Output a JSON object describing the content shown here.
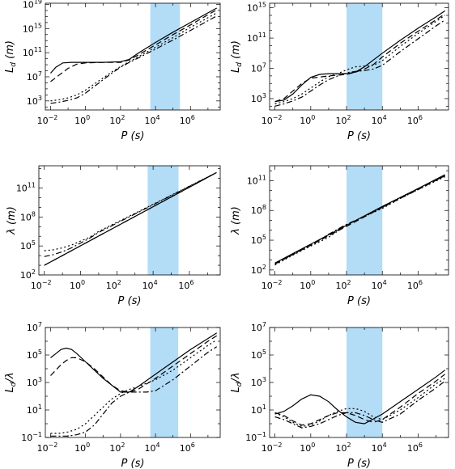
{
  "chart_data": [
    {
      "type": "line",
      "panel": "top-left",
      "xlabel": {
        "base": "P",
        "unit": "s"
      },
      "ylabel": {
        "base": "L",
        "sub": "d",
        "unit": "m"
      },
      "xlog": true,
      "ylog": true,
      "xlim": [
        -2.3,
        7.7
      ],
      "ylim": [
        1.5,
        19.2
      ],
      "xticks": [
        -2,
        0,
        2,
        4,
        6
      ],
      "yticks": [
        3,
        7,
        11,
        15,
        19
      ],
      "band": [
        3.7,
        5.4
      ],
      "band_color": "#b3dcf7",
      "series": [
        {
          "style": "solid",
          "x": [
            -2.0,
            -1.7,
            -1.3,
            -0.8,
            0,
            1,
            2,
            2.5,
            3,
            4,
            5,
            6,
            7,
            7.5
          ],
          "y": [
            7.6,
            8.6,
            9.3,
            9.4,
            9.4,
            9.4,
            9.5,
            9.9,
            10.9,
            12.7,
            14.4,
            16.0,
            17.6,
            18.4
          ]
        },
        {
          "style": "dashed",
          "x": [
            -2.0,
            -1.5,
            -1,
            -0.5,
            0,
            1,
            2,
            2.5,
            3,
            4,
            5,
            6,
            7,
            7.5
          ],
          "y": [
            6.2,
            7.3,
            8.4,
            9.1,
            9.3,
            9.4,
            9.4,
            9.8,
            10.6,
            12.3,
            14.0,
            15.6,
            17.3,
            18.1
          ]
        },
        {
          "style": "dotted",
          "x": [
            -2.0,
            -1.5,
            -1,
            -0.5,
            0,
            0.5,
            1,
            1.5,
            2,
            2.5,
            3,
            4,
            5,
            6,
            7,
            7.5
          ],
          "y": [
            3.0,
            3.2,
            3.5,
            4.0,
            4.8,
            5.8,
            6.8,
            7.8,
            8.7,
            9.5,
            10.3,
            11.9,
            13.5,
            15.2,
            16.8,
            17.6
          ]
        },
        {
          "style": "dashdot",
          "x": [
            -2.0,
            -1.5,
            -1,
            -0.5,
            0,
            0.5,
            1,
            1.5,
            2,
            2.5,
            3,
            4,
            5,
            6,
            7,
            7.5
          ],
          "y": [
            2.6,
            2.8,
            3.1,
            3.5,
            4.3,
            5.4,
            6.5,
            7.6,
            8.6,
            9.4,
            10.1,
            11.6,
            13.1,
            14.7,
            16.3,
            17.1
          ]
        }
      ]
    },
    {
      "type": "line",
      "panel": "top-right",
      "xlabel": {
        "base": "P",
        "unit": "s"
      },
      "ylabel": {
        "base": "L",
        "sub": "d",
        "unit": "m"
      },
      "xlog": true,
      "ylog": true,
      "xlim": [
        -2.3,
        7.7
      ],
      "ylim": [
        1.5,
        15.6
      ],
      "xticks": [
        -2,
        0,
        2,
        4,
        6
      ],
      "yticks": [
        3,
        7,
        11,
        15
      ],
      "band": [
        2.0,
        4.0
      ],
      "band_color": "#b3dcf7",
      "series": [
        {
          "style": "solid",
          "x": [
            -2.0,
            -1.5,
            -1,
            -0.5,
            0,
            0.5,
            1,
            2,
            2.5,
            3,
            4,
            5,
            6,
            7,
            7.5
          ],
          "y": [
            2.6,
            2.8,
            3.6,
            4.8,
            5.8,
            6.2,
            6.3,
            6.3,
            6.5,
            7.2,
            9.0,
            10.7,
            12.3,
            13.8,
            14.6
          ]
        },
        {
          "style": "dashed",
          "x": [
            -2.0,
            -1.5,
            -1,
            -0.5,
            0,
            1,
            2,
            2.5,
            3,
            3.5,
            4,
            5,
            6,
            7,
            7.5
          ],
          "y": [
            2.6,
            3.0,
            4.0,
            5.0,
            5.7,
            6.0,
            6.2,
            6.5,
            6.9,
            7.5,
            8.5,
            10.3,
            11.9,
            13.4,
            14.2
          ]
        },
        {
          "style": "dotted",
          "x": [
            -2.0,
            -1.5,
            -1,
            -0.5,
            0,
            0.5,
            1,
            1.5,
            2,
            2.5,
            3,
            3.5,
            4,
            5,
            6,
            7,
            7.5
          ],
          "y": [
            2.3,
            2.6,
            3.0,
            3.6,
            4.4,
            5.2,
            5.9,
            6.3,
            6.8,
            7.2,
            7.3,
            7.4,
            8.0,
            9.9,
            11.6,
            13.2,
            14.0
          ]
        },
        {
          "style": "dashdot",
          "x": [
            -2.0,
            -1.5,
            -1,
            -0.5,
            0,
            0.5,
            1,
            1.5,
            2,
            2.5,
            3,
            3.5,
            4,
            5,
            6,
            7,
            7.5
          ],
          "y": [
            2.0,
            2.3,
            2.7,
            3.2,
            4.0,
            4.8,
            5.5,
            6.0,
            6.4,
            6.6,
            6.7,
            6.9,
            7.4,
            9.2,
            10.9,
            12.6,
            13.4
          ]
        }
      ]
    },
    {
      "type": "line",
      "panel": "mid-left",
      "xlabel": {
        "base": "P",
        "unit": "s"
      },
      "ylabel": {
        "base": "λ",
        "sub": "",
        "unit": "m"
      },
      "xlog": true,
      "ylog": true,
      "xlim": [
        -2.3,
        7.7
      ],
      "ylim": [
        2.0,
        13.3
      ],
      "xticks": [
        -2,
        0,
        2,
        4,
        6
      ],
      "yticks": [
        2,
        5,
        8,
        11
      ],
      "band": [
        3.7,
        5.4
      ],
      "band_color": "#b3dcf7",
      "series": [
        {
          "style": "solid",
          "x": [
            -2.0,
            7.5
          ],
          "y": [
            3.0,
            12.6
          ]
        },
        {
          "style": "dashed",
          "x": [
            -2.0,
            7.5
          ],
          "y": [
            3.0,
            12.6
          ]
        },
        {
          "style": "dotted",
          "x": [
            -2.0,
            -1.5,
            -1,
            -0.5,
            0,
            0.5,
            1,
            7.5
          ],
          "y": [
            4.5,
            4.6,
            4.8,
            5.1,
            5.5,
            5.9,
            6.5,
            12.6
          ]
        },
        {
          "style": "dashdot",
          "x": [
            -2.0,
            -1.5,
            -1,
            -0.5,
            0,
            0.5,
            1,
            7.5
          ],
          "y": [
            3.9,
            4.1,
            4.4,
            4.8,
            5.3,
            5.8,
            6.4,
            12.6
          ]
        }
      ]
    },
    {
      "type": "line",
      "panel": "mid-right",
      "xlabel": {
        "base": "P",
        "unit": "s"
      },
      "ylabel": {
        "base": "λ",
        "sub": "",
        "unit": "m"
      },
      "xlog": true,
      "ylog": true,
      "xlim": [
        -2.3,
        7.7
      ],
      "ylim": [
        1.5,
        12.5
      ],
      "xticks": [
        -2,
        0,
        2,
        4,
        6
      ],
      "yticks": [
        2,
        5,
        8,
        11
      ],
      "band": [
        2.0,
        4.0
      ],
      "band_color": "#b3dcf7",
      "series": [
        {
          "style": "solid",
          "x": [
            -2.0,
            0,
            2,
            4,
            6,
            7.5
          ],
          "y": [
            2.7,
            4.6,
            6.5,
            8.4,
            10.2,
            11.6
          ]
        },
        {
          "style": "dashed",
          "x": [
            -2.0,
            0,
            2,
            4,
            6,
            7.5
          ],
          "y": [
            2.6,
            4.5,
            6.4,
            8.3,
            10.1,
            11.5
          ]
        },
        {
          "style": "dotted",
          "x": [
            -2.0,
            -1,
            0,
            1,
            2,
            3,
            4,
            5,
            6,
            7.5
          ],
          "y": [
            2.5,
            3.5,
            4.4,
            5.3,
            6.5,
            7.4,
            8.2,
            9.2,
            10.1,
            11.4
          ]
        },
        {
          "style": "dashdot",
          "x": [
            -2.0,
            -1,
            0,
            1,
            2,
            3,
            4,
            5,
            6,
            7.5
          ],
          "y": [
            2.6,
            3.6,
            4.5,
            5.6,
            6.6,
            7.4,
            8.3,
            9.3,
            10.2,
            11.5
          ]
        }
      ]
    },
    {
      "type": "line",
      "panel": "bottom-left",
      "xlabel": {
        "base": "P",
        "unit": "s"
      },
      "ylabel": {
        "base": "L",
        "sub": "d",
        "suffix": "/λ",
        "unit": ""
      },
      "xlog": true,
      "ylog": true,
      "xlim": [
        -2.3,
        7.7
      ],
      "ylim": [
        -1,
        7
      ],
      "xticks": [
        -2,
        0,
        2,
        4,
        6
      ],
      "yticks": [
        -1,
        1,
        3,
        5,
        7
      ],
      "band": [
        3.7,
        5.3
      ],
      "band_color": "#b3dcf7",
      "series": [
        {
          "style": "solid",
          "x": [
            -2.0,
            -1.7,
            -1.4,
            -1.1,
            -0.8,
            -0.5,
            0,
            0.5,
            1,
            1.5,
            2,
            2.5,
            3,
            4,
            5,
            6,
            7,
            7.5
          ],
          "y": [
            4.8,
            5.1,
            5.4,
            5.5,
            5.4,
            5.1,
            4.5,
            3.9,
            3.3,
            2.8,
            2.3,
            2.3,
            2.7,
            3.6,
            4.5,
            5.4,
            6.2,
            6.6
          ]
        },
        {
          "style": "dashed",
          "x": [
            -2.0,
            -1.7,
            -1.4,
            -1.1,
            -0.8,
            -0.5,
            0,
            0.5,
            1,
            1.5,
            2,
            2.5,
            3,
            4,
            5,
            6,
            7,
            7.5
          ],
          "y": [
            3.5,
            3.9,
            4.3,
            4.6,
            4.8,
            4.8,
            4.5,
            4.0,
            3.4,
            2.8,
            2.4,
            2.3,
            2.5,
            3.3,
            4.2,
            5.1,
            6.0,
            6.4
          ]
        },
        {
          "style": "dotted",
          "x": [
            -2.0,
            -1.5,
            -1,
            -0.5,
            0,
            0.5,
            1,
            1.5,
            2,
            2.5,
            3,
            4,
            5,
            6,
            7,
            7.5
          ],
          "y": [
            -0.7,
            -0.7,
            -0.6,
            -0.4,
            0.0,
            0.6,
            1.2,
            1.8,
            2.2,
            2.5,
            2.7,
            3.2,
            3.9,
            4.8,
            5.7,
            6.1
          ]
        },
        {
          "style": "dashdot",
          "x": [
            -2.0,
            -1.5,
            -1,
            -0.5,
            0,
            0.5,
            1,
            1.5,
            2,
            2.5,
            3,
            3.5,
            4,
            5,
            6,
            7,
            7.5
          ],
          "y": [
            -0.9,
            -0.9,
            -0.9,
            -0.8,
            -0.6,
            -0.1,
            0.7,
            1.5,
            2.0,
            2.3,
            2.3,
            2.3,
            2.4,
            3.2,
            4.2,
            5.2,
            5.6
          ]
        }
      ]
    },
    {
      "type": "line",
      "panel": "bottom-right",
      "xlabel": {
        "base": "P",
        "unit": "s"
      },
      "ylabel": {
        "base": "L",
        "sub": "d",
        "suffix": "/λ",
        "unit": ""
      },
      "xlog": true,
      "ylog": true,
      "xlim": [
        -2.3,
        7.7
      ],
      "ylim": [
        -1,
        7
      ],
      "xticks": [
        -2,
        0,
        2,
        4,
        6
      ],
      "yticks": [
        -1,
        1,
        3,
        5,
        7
      ],
      "band": [
        2.0,
        4.0
      ],
      "band_color": "#b3dcf7",
      "series": [
        {
          "style": "solid",
          "x": [
            -2.0,
            -1.5,
            -1,
            -0.5,
            0,
            0.5,
            1,
            1.5,
            2,
            2.5,
            3,
            4,
            5,
            6,
            7,
            7.5
          ],
          "y": [
            0.7,
            0.9,
            1.3,
            1.8,
            2.1,
            2.0,
            1.6,
            1.0,
            0.5,
            0.1,
            0.0,
            0.7,
            1.6,
            2.5,
            3.4,
            3.9
          ]
        },
        {
          "style": "dashed",
          "x": [
            -2.0,
            -1.5,
            -1,
            -0.5,
            0,
            0.5,
            1,
            1.5,
            2,
            2.5,
            3,
            3.5,
            4,
            5,
            6,
            7,
            7.5
          ],
          "y": [
            0.8,
            0.6,
            0.2,
            -0.1,
            0.0,
            0.3,
            0.6,
            0.8,
            0.8,
            0.6,
            0.3,
            0.1,
            0.3,
            1.2,
            2.2,
            3.1,
            3.6
          ]
        },
        {
          "style": "dotted",
          "x": [
            -2.0,
            -1.5,
            -1,
            -0.5,
            0,
            0.5,
            1,
            1.5,
            2,
            2.5,
            3,
            3.5,
            4,
            5,
            6,
            7,
            7.5
          ],
          "y": [
            0.8,
            0.5,
            0.1,
            -0.2,
            -0.1,
            0.2,
            0.6,
            0.9,
            1.1,
            1.1,
            0.9,
            0.5,
            0.3,
            1.0,
            1.9,
            2.9,
            3.3
          ]
        },
        {
          "style": "dashdot",
          "x": [
            -2.0,
            -1.5,
            -1,
            -0.5,
            0,
            0.5,
            1,
            1.5,
            2,
            2.5,
            3,
            3.5,
            4,
            5,
            6,
            7,
            7.5
          ],
          "y": [
            0.5,
            0.3,
            0.0,
            -0.3,
            -0.2,
            0.0,
            0.3,
            0.6,
            0.8,
            0.8,
            0.6,
            0.3,
            0.1,
            0.7,
            1.7,
            2.6,
            3.1
          ]
        }
      ]
    }
  ]
}
